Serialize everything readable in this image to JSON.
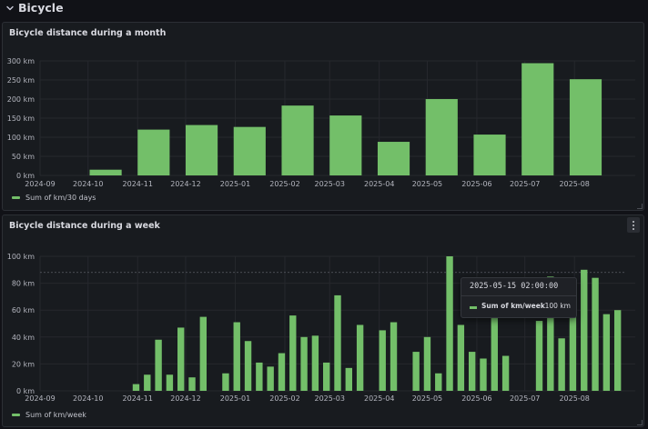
{
  "row": {
    "title": "Bicycle",
    "icon": "chevron-down-icon"
  },
  "colors": {
    "bar": "#73bf69",
    "grid": "#26282d",
    "threshold": "#5a5d66"
  },
  "panel1": {
    "title": "Bicycle distance during a month",
    "legend": "Sum of km/30 days"
  },
  "panel2": {
    "title": "Bicycle distance during a week",
    "legend": "Sum of km/week",
    "menu_icon": "kebab-menu-icon"
  },
  "tooltip": {
    "time": "2025-05-15 02:00:00",
    "series": "Sum of km/week",
    "value": "100 km"
  },
  "chart_data": [
    {
      "type": "bar",
      "title": "Bicycle distance during a month",
      "series": [
        {
          "name": "Sum of km/30 days",
          "values": [
            15,
            120,
            132,
            127,
            183,
            157,
            88,
            200,
            107,
            294,
            252
          ]
        }
      ],
      "bar_dates": [
        "2024-10-12",
        "2024-11-11",
        "2024-12-11",
        "2025-01-10",
        "2025-02-09",
        "2025-03-11",
        "2025-04-10",
        "2025-05-10",
        "2025-06-09",
        "2025-07-09",
        "2025-08-08"
      ],
      "x_ticks": [
        "2024-09",
        "2024-10",
        "2024-11",
        "2024-12",
        "2025-01",
        "2025-02",
        "2025-03",
        "2025-04",
        "2025-05",
        "2025-06",
        "2025-07",
        "2025-08"
      ],
      "x_range": [
        "2024-09-01",
        "2025-09-08"
      ],
      "y_ticks": [
        "0 km",
        "50 km",
        "100 km",
        "150 km",
        "200 km",
        "250 km",
        "300 km"
      ],
      "ylim": [
        0,
        300
      ],
      "grid": true,
      "legend_position": "bottom-left"
    },
    {
      "type": "bar",
      "title": "Bicycle distance during a week",
      "series": [
        {
          "name": "Sum of km/week",
          "values": [
            5,
            12,
            38,
            12,
            47,
            10,
            55,
            13,
            51,
            37,
            21,
            18,
            28,
            56,
            40,
            41,
            21,
            71,
            17,
            49,
            45,
            51,
            29,
            40,
            13,
            100,
            49,
            29,
            24,
            60,
            26,
            52,
            85,
            39,
            78,
            90,
            84,
            57,
            60
          ]
        }
      ],
      "bar_dates": [
        "2024-10-31",
        "2024-11-07",
        "2024-11-14",
        "2024-11-21",
        "2024-11-28",
        "2024-12-05",
        "2024-12-12",
        "2024-12-26",
        "2025-01-02",
        "2025-01-09",
        "2025-01-16",
        "2025-01-23",
        "2025-01-30",
        "2025-02-06",
        "2025-02-13",
        "2025-02-20",
        "2025-02-27",
        "2025-03-06",
        "2025-03-13",
        "2025-03-20",
        "2025-04-03",
        "2025-04-10",
        "2025-04-24",
        "2025-05-01",
        "2025-05-08",
        "2025-05-15",
        "2025-05-22",
        "2025-05-29",
        "2025-06-05",
        "2025-06-12",
        "2025-06-19",
        "2025-07-10",
        "2025-07-17",
        "2025-07-24",
        "2025-07-31",
        "2025-08-07",
        "2025-08-14",
        "2025-08-21",
        "2025-08-28"
      ],
      "x_ticks": [
        "2024-09",
        "2024-10",
        "2024-11",
        "2024-12",
        "2025-01",
        "2025-02",
        "2025-03",
        "2025-04",
        "2025-05",
        "2025-06",
        "2025-07",
        "2025-08"
      ],
      "x_range": [
        "2024-09-01",
        "2025-09-08"
      ],
      "y_ticks": [
        "0 km",
        "20 km",
        "40 km",
        "60 km",
        "80 km",
        "100 km"
      ],
      "ylim": [
        0,
        100
      ],
      "threshold": 88,
      "grid": true,
      "legend_position": "bottom-left"
    }
  ]
}
